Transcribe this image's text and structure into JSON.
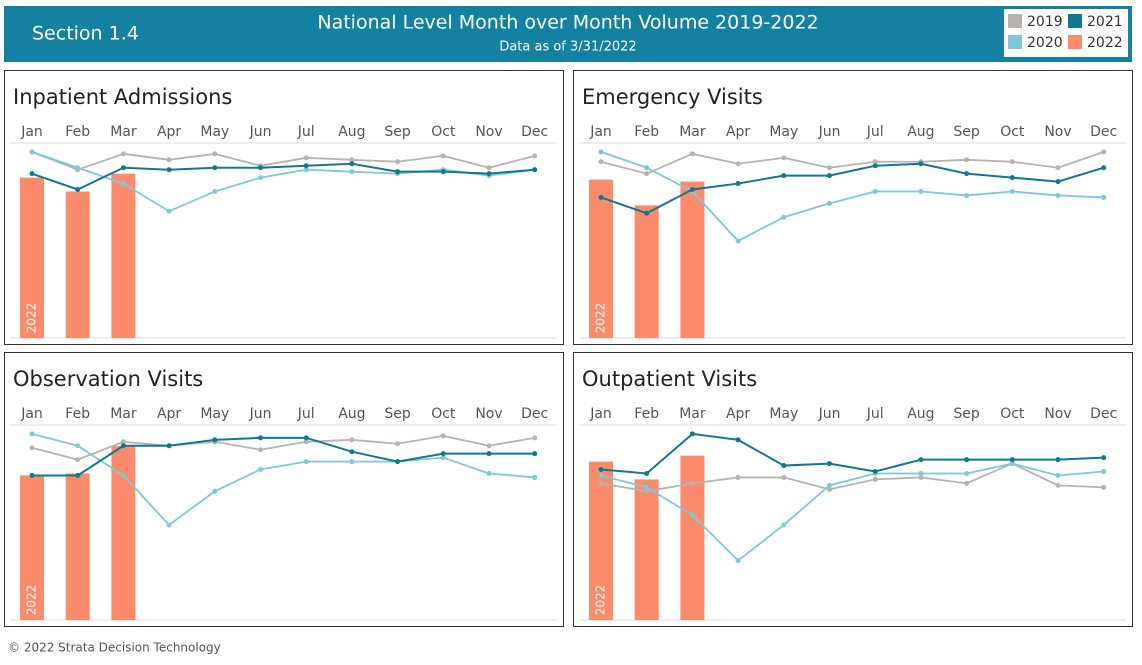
{
  "header": {
    "section": "Section 1.4",
    "title": "National Level Month over Month Volume 2019-2022",
    "subtitle": "Data as of 3/31/2022"
  },
  "footer": "© 2022 Strata Decision Technology",
  "chart_data": [
    {
      "type": "line",
      "title": "Inpatient Admissions",
      "ylim": [
        0,
        100
      ],
      "categories": [
        "Jan",
        "Feb",
        "Mar",
        "Apr",
        "May",
        "Jun",
        "Jul",
        "Aug",
        "Sep",
        "Oct",
        "Nov",
        "Dec"
      ],
      "series": [
        {
          "name": "2019",
          "color": "#b8b3ae",
          "values": [
            94,
            85,
            93,
            90,
            93,
            87,
            91,
            90,
            89,
            92,
            86,
            92
          ]
        },
        {
          "name": "2020",
          "color": "#7ec8d9",
          "values": [
            94,
            86,
            78,
            64,
            74,
            81,
            85,
            84,
            83,
            85,
            82,
            85
          ]
        },
        {
          "name": "2021",
          "color": "#12788f",
          "values": [
            83,
            75,
            86,
            85,
            86,
            86,
            87,
            88,
            84,
            84,
            83,
            85
          ]
        },
        {
          "name": "2022",
          "color": "#fb8b6b",
          "bar": true,
          "values": [
            81,
            74,
            83,
            null,
            null,
            null,
            null,
            null,
            null,
            null,
            null,
            null
          ]
        }
      ]
    },
    {
      "type": "line",
      "title": "Emergency Visits",
      "ylim": [
        0,
        100
      ],
      "categories": [
        "Jan",
        "Feb",
        "Mar",
        "Apr",
        "May",
        "Jun",
        "Jul",
        "Aug",
        "Sep",
        "Oct",
        "Nov",
        "Dec"
      ],
      "series": [
        {
          "name": "2019",
          "color": "#b8b3ae",
          "values": [
            89,
            83,
            93,
            88,
            91,
            86,
            89,
            89,
            90,
            89,
            86,
            94
          ]
        },
        {
          "name": "2020",
          "color": "#7ec8d9",
          "values": [
            94,
            86,
            74,
            49,
            61,
            68,
            74,
            74,
            72,
            74,
            72,
            71
          ]
        },
        {
          "name": "2021",
          "color": "#12788f",
          "values": [
            71,
            63,
            75,
            78,
            82,
            82,
            87,
            88,
            83,
            81,
            79,
            86
          ]
        },
        {
          "name": "2022",
          "color": "#fb8b6b",
          "bar": true,
          "values": [
            80,
            67,
            79,
            null,
            null,
            null,
            null,
            null,
            null,
            null,
            null,
            null
          ]
        }
      ]
    },
    {
      "type": "line",
      "title": "Observation Visits",
      "ylim": [
        0,
        100
      ],
      "categories": [
        "Jan",
        "Feb",
        "Mar",
        "Apr",
        "May",
        "Jun",
        "Jul",
        "Aug",
        "Sep",
        "Oct",
        "Nov",
        "Dec"
      ],
      "series": [
        {
          "name": "2019",
          "color": "#b8b3ae",
          "values": [
            87,
            81,
            90,
            88,
            90,
            86,
            90,
            91,
            89,
            93,
            88,
            92
          ]
        },
        {
          "name": "2020",
          "color": "#7ec8d9",
          "values": [
            94,
            88,
            73,
            48,
            65,
            76,
            80,
            80,
            80,
            82,
            74,
            72
          ]
        },
        {
          "name": "2021",
          "color": "#12788f",
          "values": [
            73,
            73,
            88,
            88,
            91,
            92,
            92,
            85,
            80,
            84,
            84,
            84
          ]
        },
        {
          "name": "2022",
          "color": "#fb8b6b",
          "bar": true,
          "values": [
            73,
            74,
            88,
            null,
            null,
            null,
            null,
            null,
            null,
            null,
            null,
            null
          ]
        }
      ]
    },
    {
      "type": "line",
      "title": "Outpatient Visits",
      "ylim": [
        0,
        100
      ],
      "categories": [
        "Jan",
        "Feb",
        "Mar",
        "Apr",
        "May",
        "Jun",
        "Jul",
        "Aug",
        "Sep",
        "Oct",
        "Nov",
        "Dec"
      ],
      "series": [
        {
          "name": "2019",
          "color": "#b8b3ae",
          "values": [
            69,
            65,
            69,
            72,
            72,
            66,
            71,
            72,
            69,
            79,
            68,
            67
          ]
        },
        {
          "name": "2020",
          "color": "#7ec8d9",
          "values": [
            73,
            67,
            53,
            30,
            48,
            68,
            74,
            74,
            74,
            79,
            73,
            75
          ]
        },
        {
          "name": "2021",
          "color": "#12788f",
          "values": [
            76,
            74,
            94,
            91,
            78,
            79,
            75,
            81,
            81,
            81,
            81,
            82
          ]
        },
        {
          "name": "2022",
          "color": "#fb8b6b",
          "bar": true,
          "values": [
            80,
            71,
            83,
            null,
            null,
            null,
            null,
            null,
            null,
            null,
            null,
            null
          ]
        }
      ]
    }
  ]
}
